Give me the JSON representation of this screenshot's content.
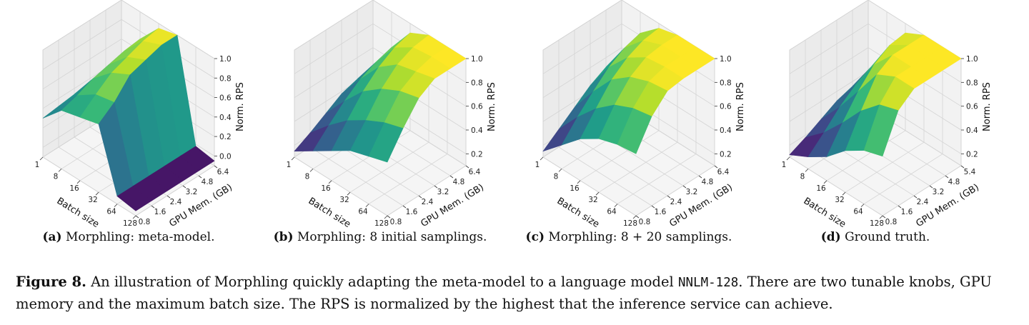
{
  "figure": {
    "label": "Figure 8.",
    "caption_part1": " An illustration of Morphling quickly adapting the meta-model to a language model ",
    "caption_code": "NNLM-128",
    "caption_part2": ". There are two tunable knobs, GPU memory and the maximum batch size. The RPS is normalized by the highest that the inference service can achieve."
  },
  "chart_data": [
    {
      "type": "surface3d",
      "subcaption_label": "(a)",
      "subcaption_text": " Morphling: meta-model.",
      "xlabel": "Batch size",
      "ylabel": "GPU Mem. (GB)",
      "zlabel": "Norm. RPS",
      "x_ticks": [
        "1",
        "8",
        "16",
        "32",
        "64",
        "128"
      ],
      "y_ticks": [
        "0.8",
        "1.6",
        "2.4",
        "3.2",
        "4.8",
        "6.4"
      ],
      "z_ticks": [
        "0.0",
        "0.2",
        "0.4",
        "0.6",
        "0.8",
        "1.0"
      ],
      "zlim": [
        -0.1,
        1.0
      ],
      "x_values": [
        1,
        8,
        16,
        32,
        64,
        128
      ],
      "y_values": [
        0.8,
        1.6,
        2.4,
        3.2,
        4.8,
        6.4
      ],
      "z": [
        [
          0.3,
          0.32,
          0.34,
          0.36,
          0.38,
          0.4
        ],
        [
          0.5,
          0.55,
          0.62,
          0.66,
          0.7,
          0.72
        ],
        [
          0.55,
          0.68,
          0.8,
          0.86,
          0.92,
          0.95
        ],
        [
          0.6,
          0.72,
          0.9,
          0.95,
          1.0,
          1.0
        ],
        [
          -0.02,
          -0.02,
          -0.02,
          -0.02,
          -0.02,
          -0.02
        ],
        [
          -0.05,
          -0.05,
          -0.05,
          -0.05,
          -0.05,
          -0.05
        ]
      ]
    },
    {
      "type": "surface3d",
      "subcaption_label": "(b)",
      "subcaption_text": " Morphling: 8 initial samplings.",
      "xlabel": "Batch size",
      "ylabel": "GPU Mem. (GB)",
      "zlabel": "Norm. RPS",
      "x_ticks": [
        "1",
        "8",
        "16",
        "32",
        "64",
        "128"
      ],
      "y_ticks": [
        "0.8",
        "1.6",
        "2.4",
        "3.2",
        "4.8",
        "6.4"
      ],
      "z_ticks": [
        "0.2",
        "0.4",
        "0.6",
        "0.8",
        "1.0"
      ],
      "zlim": [
        0.1,
        1.0
      ],
      "x_values": [
        1,
        8,
        16,
        32,
        64,
        128
      ],
      "y_values": [
        0.8,
        1.6,
        2.4,
        3.2,
        4.8,
        6.4
      ],
      "z": [
        [
          0.15,
          0.22,
          0.3,
          0.38,
          0.42,
          0.45
        ],
        [
          0.25,
          0.38,
          0.5,
          0.6,
          0.66,
          0.7
        ],
        [
          0.35,
          0.52,
          0.68,
          0.8,
          0.88,
          0.92
        ],
        [
          0.45,
          0.62,
          0.8,
          0.92,
          0.98,
          1.0
        ],
        [
          0.5,
          0.7,
          0.88,
          0.96,
          1.0,
          1.0
        ],
        [
          0.55,
          0.75,
          0.92,
          1.0,
          1.0,
          1.0
        ]
      ]
    },
    {
      "type": "surface3d",
      "subcaption_label": "(c)",
      "subcaption_text": " Morphling: 8 + 20 samplings.",
      "xlabel": "Batch size",
      "ylabel": "GPU Mem. (GB)",
      "zlabel": "Norm. RPS",
      "x_ticks": [
        "1",
        "8",
        "16",
        "32",
        "64",
        "128"
      ],
      "y_ticks": [
        "0.8",
        "1.6",
        "2.4",
        "3.2",
        "4.8",
        "6.4"
      ],
      "z_ticks": [
        "0.2",
        "0.4",
        "0.6",
        "0.8",
        "1.0"
      ],
      "zlim": [
        0.1,
        1.0
      ],
      "x_values": [
        1,
        8,
        16,
        32,
        64,
        128
      ],
      "y_values": [
        0.8,
        1.6,
        2.4,
        3.2,
        4.8,
        6.4
      ],
      "z": [
        [
          0.15,
          0.25,
          0.35,
          0.45,
          0.52,
          0.55
        ],
        [
          0.3,
          0.45,
          0.58,
          0.7,
          0.78,
          0.82
        ],
        [
          0.45,
          0.62,
          0.78,
          0.88,
          0.94,
          0.96
        ],
        [
          0.55,
          0.75,
          0.9,
          0.98,
          1.0,
          1.0
        ],
        [
          0.6,
          0.82,
          0.96,
          1.0,
          1.0,
          1.0
        ],
        [
          0.62,
          0.85,
          0.98,
          1.0,
          1.0,
          1.0
        ]
      ]
    },
    {
      "type": "surface3d",
      "subcaption_label": "(d)",
      "subcaption_text": " Ground truth.",
      "xlabel": "Batch size",
      "ylabel": "GPU Mem. (GB)",
      "zlabel": "Norm. RPS",
      "x_ticks": [
        "1",
        "8",
        "16",
        "32",
        "64",
        "128"
      ],
      "y_ticks": [
        "0.8",
        "1.6",
        "2.4",
        "3.2",
        "4.8",
        "5.4"
      ],
      "z_ticks": [
        "0.2",
        "0.4",
        "0.6",
        "0.8",
        "1.0"
      ],
      "zlim": [
        0.1,
        1.0
      ],
      "x_values": [
        1,
        8,
        16,
        32,
        64,
        128
      ],
      "y_values": [
        0.8,
        1.6,
        2.4,
        3.2,
        4.8,
        5.4
      ],
      "z": [
        [
          0.12,
          0.18,
          0.25,
          0.32,
          0.36,
          0.4
        ],
        [
          0.2,
          0.32,
          0.45,
          0.55,
          0.62,
          0.65
        ],
        [
          0.3,
          0.5,
          0.68,
          0.82,
          0.9,
          0.92
        ],
        [
          0.45,
          0.7,
          0.92,
          1.0,
          1.0,
          1.0
        ],
        [
          0.55,
          0.85,
          1.0,
          1.0,
          1.0,
          1.0
        ],
        [
          0.6,
          0.9,
          1.0,
          1.0,
          1.0,
          1.0
        ]
      ]
    }
  ]
}
